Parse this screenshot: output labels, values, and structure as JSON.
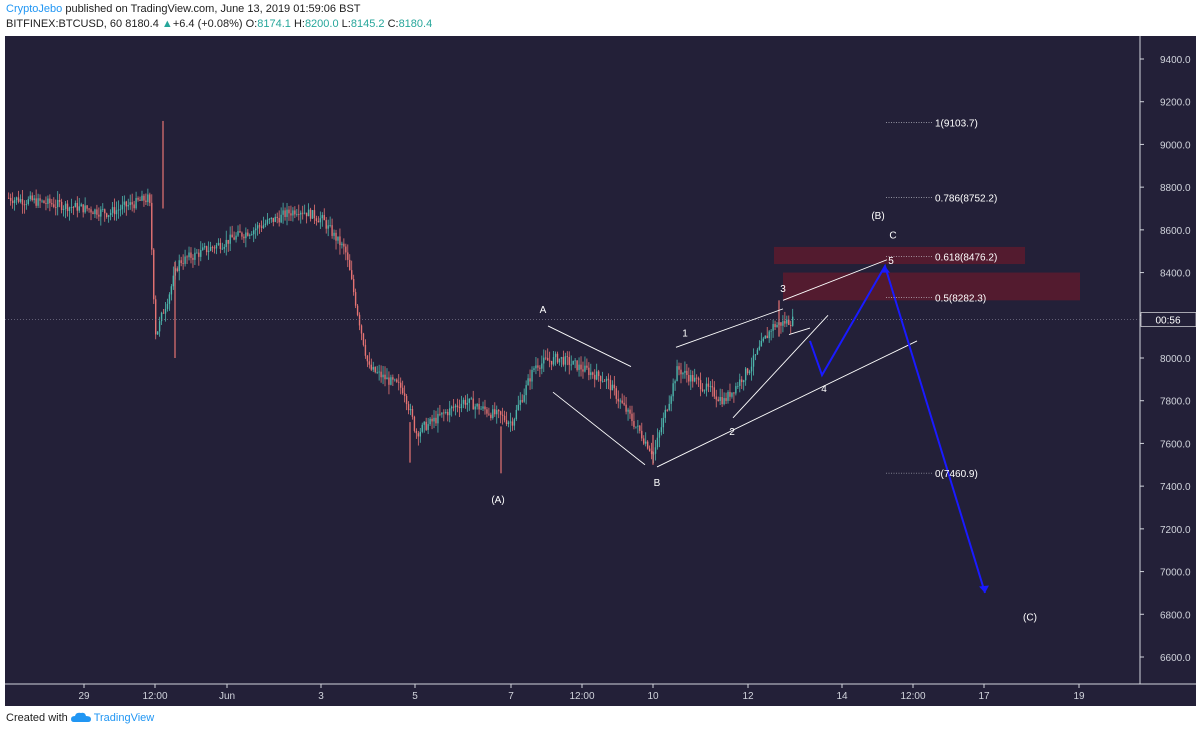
{
  "header": {
    "author": "CryptoJebo",
    "published_text": "published on TradingView.com, June 13, 2019 01:59:06 BST",
    "symbol": "BITFINEX:BTCUSD, 60",
    "last": "8180.4",
    "change_arrow": "▲",
    "change": "+6.4 (+0.08%)",
    "open_label": "O:",
    "open": "8174.1",
    "high_label": "H:",
    "high": "8200.0",
    "low_label": "L:",
    "low": "8145.2",
    "close_label": "C:",
    "close": "8180.4"
  },
  "footer": {
    "created_with": "Created with",
    "brand": "TradingView"
  },
  "price_tag": "00:56",
  "colors": {
    "background": "#232038",
    "up": "#4db6ac",
    "down": "#e57373",
    "projection": "#1a1aff",
    "zone": "#5c1b2e",
    "annotation": "#ffffff",
    "axis_text": "#d1d4dc"
  },
  "chart_data": {
    "type": "candlestick",
    "title": "",
    "xlabel": "",
    "ylabel": "",
    "ylim": [
      6350,
      9650
    ],
    "y_ticks": [
      "6600.0",
      "6800.0",
      "7000.0",
      "7200.0",
      "7400.0",
      "7600.0",
      "7800.0",
      "8000.0",
      "8200.0",
      "8400.0",
      "8600.0",
      "8800.0",
      "9000.0",
      "9200.0",
      "9400.0"
    ],
    "x_ticks": [
      "29",
      "12:00",
      "Jun",
      "3",
      "5",
      "7",
      "12:00",
      "10",
      "12",
      "14",
      "12:00",
      "17",
      "19"
    ],
    "approx_price_path": [
      {
        "t": "May 28 00:00",
        "price": 8750
      },
      {
        "t": "May 29 00:00",
        "price": 8700
      },
      {
        "t": "May 29 12:00",
        "price": 8680
      },
      {
        "t": "May 30 09:00",
        "price": 8750
      },
      {
        "t": "May 30 12:00",
        "price": 8100
      },
      {
        "t": "May 31 00:00",
        "price": 8450
      },
      {
        "t": "Jun 1 00:00",
        "price": 8550
      },
      {
        "t": "Jun 2 12:00",
        "price": 8700
      },
      {
        "t": "Jun 3 00:00",
        "price": 8650
      },
      {
        "t": "Jun 3 12:00",
        "price": 8500
      },
      {
        "t": "Jun 4 00:00",
        "price": 7950
      },
      {
        "t": "Jun 4 18:00",
        "price": 7850
      },
      {
        "t": "Jun 5 00:00",
        "price": 7650
      },
      {
        "t": "Jun 6 00:00",
        "price": 7800
      },
      {
        "t": "Jun 7 00:00",
        "price": 7700
      },
      {
        "t": "Jun 7 12:00",
        "price": 7970
      },
      {
        "t": "Jun 8 00:00",
        "price": 8000
      },
      {
        "t": "Jun 9 00:00",
        "price": 7900
      },
      {
        "t": "Jun 10 00:00",
        "price": 7550
      },
      {
        "t": "Jun 10 12:00",
        "price": 7950
      },
      {
        "t": "Jun 11 12:00",
        "price": 7800
      },
      {
        "t": "Jun 12 00:00",
        "price": 7950
      },
      {
        "t": "Jun 12 12:00",
        "price": 8150
      },
      {
        "t": "Jun 12 23:00",
        "price": 8180.4
      }
    ],
    "fibonacci_levels": [
      {
        "label": "1(9103.7)",
        "value": 9103.7
      },
      {
        "label": "0.786(8752.2)",
        "value": 8752.2
      },
      {
        "label": "0.618(8476.2)",
        "value": 8476.2
      },
      {
        "label": "0.5(8282.3)",
        "value": 8282.3
      },
      {
        "label": "0(7460.9)",
        "value": 7460.9
      }
    ],
    "wave_labels": [
      "A",
      "B",
      "(A)",
      "1",
      "2",
      "3",
      "4",
      "5",
      "(B)",
      "C",
      "(C)"
    ],
    "projection_path": [
      8080,
      7920,
      8430,
      6900
    ]
  }
}
